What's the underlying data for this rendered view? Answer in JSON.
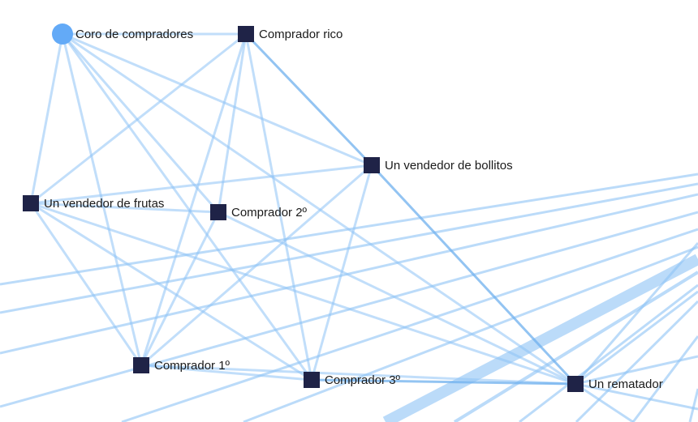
{
  "graph": {
    "colors": {
      "edge": "#8ec3f5",
      "node_character": "#1f2347",
      "node_group": "#63aaf7",
      "label": "#1a1a1a"
    },
    "nodes": [
      {
        "id": "coro",
        "label": "Coro de compradores",
        "shape": "circle"
      },
      {
        "id": "rico",
        "label": "Comprador rico",
        "shape": "square"
      },
      {
        "id": "bollitos",
        "label": "Un vendedor de bollitos",
        "shape": "square"
      },
      {
        "id": "frutas",
        "label": "Un vendedor de frutas",
        "shape": "square"
      },
      {
        "id": "c2",
        "label": "Comprador 2º",
        "shape": "square"
      },
      {
        "id": "c1",
        "label": "Comprador 1º",
        "shape": "square"
      },
      {
        "id": "c3",
        "label": "Comprador 3º",
        "shape": "square"
      },
      {
        "id": "rematador",
        "label": "Un rematador",
        "shape": "square"
      }
    ],
    "edges": [
      {
        "source": "coro",
        "target": "rico"
      },
      {
        "source": "coro",
        "target": "bollitos"
      },
      {
        "source": "coro",
        "target": "frutas"
      },
      {
        "source": "coro",
        "target": "c2"
      },
      {
        "source": "coro",
        "target": "c1"
      },
      {
        "source": "coro",
        "target": "c3"
      },
      {
        "source": "coro",
        "target": "rematador"
      },
      {
        "source": "rico",
        "target": "bollitos",
        "weight": 2
      },
      {
        "source": "rico",
        "target": "frutas"
      },
      {
        "source": "rico",
        "target": "c2"
      },
      {
        "source": "rico",
        "target": "c1"
      },
      {
        "source": "rico",
        "target": "c3"
      },
      {
        "source": "bollitos",
        "target": "frutas"
      },
      {
        "source": "bollitos",
        "target": "c1"
      },
      {
        "source": "bollitos",
        "target": "c3"
      },
      {
        "source": "bollitos",
        "target": "rematador",
        "weight": 2
      },
      {
        "source": "frutas",
        "target": "c2"
      },
      {
        "source": "frutas",
        "target": "c1"
      },
      {
        "source": "frutas",
        "target": "c3"
      },
      {
        "source": "frutas",
        "target": "rematador"
      },
      {
        "source": "c2",
        "target": "c1"
      },
      {
        "source": "c2",
        "target": "rematador"
      },
      {
        "source": "c1",
        "target": "c3"
      },
      {
        "source": "c1",
        "target": "rematador"
      },
      {
        "source": "c3",
        "target": "rematador",
        "weight": 2
      }
    ]
  }
}
